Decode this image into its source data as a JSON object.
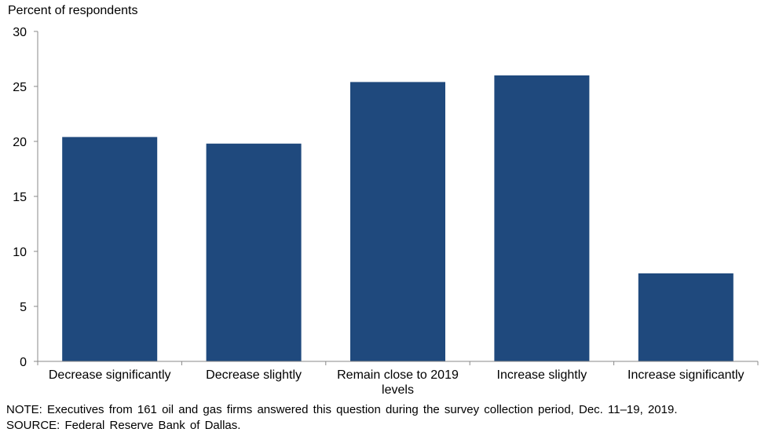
{
  "chart_data": {
    "type": "bar",
    "ylabel": "Percent of respondents",
    "categories": [
      [
        "Decrease significantly"
      ],
      [
        "Decrease slightly"
      ],
      [
        "Remain close to 2019",
        "levels"
      ],
      [
        "Increase slightly"
      ],
      [
        "Increase significantly"
      ]
    ],
    "values": [
      20.4,
      19.8,
      25.4,
      26.0,
      8.0
    ],
    "ylim": [
      0,
      30
    ],
    "yticks": [
      0,
      5,
      10,
      15,
      20,
      25,
      30
    ],
    "bar_color": "#1f497d",
    "grid": false,
    "legend": "none"
  },
  "notes": {
    "note": "NOTE: Executives from 161 oil and gas firms answered this question during the survey collection period, Dec. 11–19, 2019.",
    "source": "SOURCE: Federal Reserve Bank of Dallas."
  }
}
